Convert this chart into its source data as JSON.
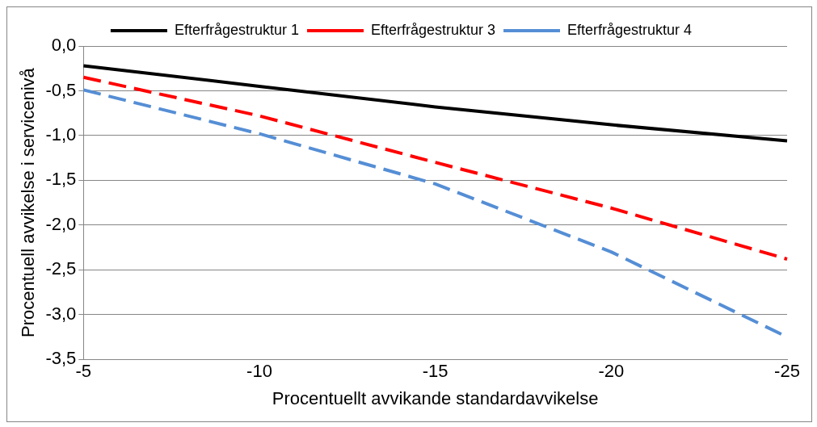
{
  "chart_data": {
    "type": "line",
    "xlabel": "Procentuellt avvikande standardavvikelse",
    "ylabel": "Procentuell avvikelse i servicenivå",
    "categories": [
      "-5",
      "-10",
      "-15",
      "-20",
      "-25"
    ],
    "series": [
      {
        "name": "Efterfrågestruktur 1",
        "color": "#000000",
        "line_style": "solid",
        "values": [
          -0.22,
          -0.45,
          -0.68,
          -0.88,
          -1.06
        ]
      },
      {
        "name": "Efterfrågestruktur 3",
        "color": "#ff0000",
        "line_style": "dashed",
        "values": [
          -0.35,
          -0.78,
          -1.3,
          -1.81,
          -2.38
        ]
      },
      {
        "name": "Efterfrågestruktur 4",
        "color": "#558ed5",
        "line_style": "dashed",
        "values": [
          -0.49,
          -0.98,
          -1.54,
          -2.3,
          -3.25
        ]
      }
    ],
    "ylim": [
      -3.5,
      0
    ],
    "yticks": [
      {
        "value": 0,
        "label": "0,0"
      },
      {
        "value": -0.5,
        "label": "-0,5"
      },
      {
        "value": -1,
        "label": "-1,0"
      },
      {
        "value": -1.5,
        "label": "-1,5"
      },
      {
        "value": -2,
        "label": "-2,0"
      },
      {
        "value": -2.5,
        "label": "-2,5"
      },
      {
        "value": -3,
        "label": "-3,0"
      },
      {
        "value": -3.5,
        "label": "-3,5"
      }
    ],
    "grid": "y",
    "legend": "top",
    "marker": "none"
  }
}
